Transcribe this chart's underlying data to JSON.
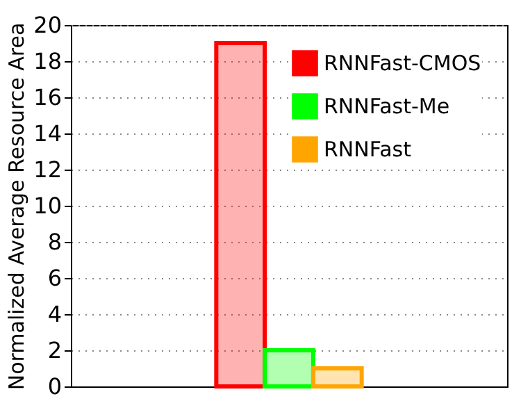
{
  "chart_data": {
    "type": "bar",
    "ylabel": "Normalized Average Resource Area",
    "categories": [
      null
    ],
    "series": [
      {
        "name": "RNNFast-CMOS",
        "color": "#ff0000",
        "values": [
          19
        ]
      },
      {
        "name": "RNNFast-Me",
        "color": "#00ff00",
        "values": [
          2
        ]
      },
      {
        "name": "RNNFast",
        "color": "#ffa500",
        "values": [
          1
        ]
      }
    ],
    "ylim": [
      0,
      20
    ],
    "yticks": [
      0,
      2,
      4,
      6,
      8,
      10,
      12,
      14,
      16,
      18,
      20
    ],
    "grid": "y",
    "legend": "top right"
  }
}
